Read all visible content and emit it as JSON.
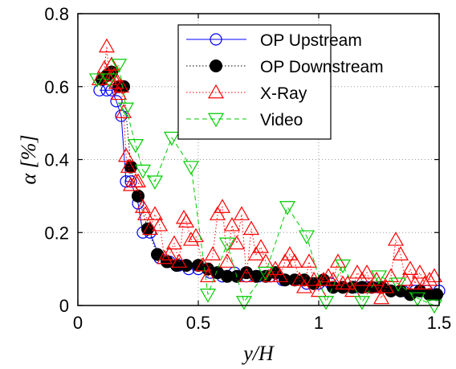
{
  "chart_data": {
    "type": "scatter",
    "xlabel": "y/H",
    "ylabel": "α [%]",
    "xlim": [
      0,
      1.5
    ],
    "ylim": [
      0,
      0.8
    ],
    "xticks": [
      "0",
      "0.5",
      "1",
      "1.5"
    ],
    "yticks": [
      "0",
      "0.2",
      "0.4",
      "0.6",
      "0.8"
    ],
    "grid": true,
    "legend_position": "top-right",
    "series": [
      {
        "name": "OP Upstream",
        "color": "#0000ff",
        "line": "solid",
        "marker": "circle-open",
        "x": [
          0.09,
          0.12,
          0.14,
          0.16,
          0.18,
          0.2,
          0.22,
          0.25,
          0.27,
          0.3,
          0.34,
          0.38,
          0.42,
          0.46,
          0.5,
          0.55,
          0.6,
          0.65,
          0.7,
          0.75,
          0.8,
          0.85,
          0.9,
          0.95,
          1.0,
          1.05,
          1.1,
          1.15,
          1.2,
          1.25,
          1.3,
          1.35,
          1.4,
          1.45,
          1.5
        ],
        "y": [
          0.59,
          0.59,
          0.59,
          0.56,
          0.52,
          0.34,
          0.34,
          0.28,
          0.2,
          0.2,
          0.13,
          0.12,
          0.11,
          0.1,
          0.1,
          0.09,
          0.08,
          0.09,
          0.08,
          0.08,
          0.08,
          0.07,
          0.07,
          0.06,
          0.06,
          0.06,
          0.05,
          0.05,
          0.05,
          0.05,
          0.04,
          0.04,
          0.04,
          0.04,
          0.04
        ]
      },
      {
        "name": "OP Downstream",
        "color": "#000000",
        "line": "dotted",
        "marker": "circle-filled",
        "x": [
          0.1,
          0.12,
          0.14,
          0.17,
          0.19,
          0.22,
          0.25,
          0.29,
          0.33,
          0.37,
          0.41,
          0.45,
          0.5,
          0.54,
          0.58,
          0.62,
          0.66,
          0.7,
          0.74,
          0.78,
          0.82,
          0.86,
          0.9,
          0.94,
          0.98,
          1.02,
          1.06,
          1.1,
          1.14,
          1.18,
          1.22,
          1.26,
          1.3,
          1.34,
          1.38,
          1.42,
          1.46,
          1.49
        ],
        "y": [
          0.62,
          0.63,
          0.64,
          0.6,
          0.6,
          0.38,
          0.3,
          0.21,
          0.14,
          0.12,
          0.11,
          0.11,
          0.11,
          0.1,
          0.09,
          0.08,
          0.08,
          0.09,
          0.08,
          0.08,
          0.09,
          0.07,
          0.07,
          0.07,
          0.06,
          0.07,
          0.05,
          0.05,
          0.05,
          0.05,
          0.05,
          0.05,
          0.04,
          0.04,
          0.03,
          0.04,
          0.03,
          0.03
        ]
      },
      {
        "name": "X-Ray",
        "color": "#ff0000",
        "line": "dotted",
        "marker": "triangle-up-open",
        "x": [
          0.09,
          0.11,
          0.12,
          0.13,
          0.14,
          0.15,
          0.16,
          0.17,
          0.18,
          0.19,
          0.2,
          0.21,
          0.22,
          0.24,
          0.25,
          0.27,
          0.28,
          0.3,
          0.32,
          0.34,
          0.36,
          0.38,
          0.4,
          0.42,
          0.44,
          0.45,
          0.47,
          0.49,
          0.52,
          0.54,
          0.56,
          0.58,
          0.6,
          0.62,
          0.64,
          0.66,
          0.68,
          0.7,
          0.72,
          0.74,
          0.76,
          0.78,
          0.8,
          0.82,
          0.84,
          0.86,
          0.88,
          0.9,
          0.92,
          0.94,
          0.96,
          0.98,
          1.0,
          1.02,
          1.04,
          1.06,
          1.08,
          1.1,
          1.12,
          1.14,
          1.16,
          1.18,
          1.2,
          1.22,
          1.24,
          1.26,
          1.28,
          1.3,
          1.32,
          1.34,
          1.36,
          1.38,
          1.4,
          1.42,
          1.44,
          1.46,
          1.48
        ],
        "y": [
          0.62,
          0.65,
          0.71,
          0.62,
          0.66,
          0.63,
          0.61,
          0.58,
          0.6,
          0.53,
          0.41,
          0.38,
          0.33,
          0.34,
          0.34,
          0.27,
          0.25,
          0.21,
          0.25,
          0.22,
          0.13,
          0.14,
          0.17,
          0.12,
          0.24,
          0.23,
          0.18,
          0.19,
          0.11,
          0.08,
          0.14,
          0.25,
          0.27,
          0.12,
          0.22,
          0.17,
          0.25,
          0.08,
          0.21,
          0.14,
          0.16,
          0.12,
          0.08,
          0.1,
          0.08,
          0.12,
          0.14,
          0.12,
          0.07,
          0.05,
          0.12,
          0.07,
          0.04,
          0.07,
          0.08,
          0.07,
          0.12,
          0.06,
          0.06,
          0.04,
          0.09,
          0.07,
          0.09,
          0.05,
          0.07,
          0.02,
          0.05,
          0.08,
          0.18,
          0.14,
          0.07,
          0.1,
          0.06,
          0.09,
          0.06,
          0.07,
          0.08
        ]
      },
      {
        "name": "Video",
        "color": "#00cc00",
        "line": "dashed",
        "marker": "triangle-down-open",
        "x": [
          0.08,
          0.13,
          0.17,
          0.2,
          0.24,
          0.27,
          0.32,
          0.39,
          0.47,
          0.54,
          0.62,
          0.69,
          0.78,
          0.87,
          0.95,
          1.03,
          1.1,
          1.18,
          1.25,
          1.33,
          1.41,
          1.48
        ],
        "y": [
          0.62,
          0.62,
          0.66,
          0.54,
          0.44,
          0.37,
          0.34,
          0.46,
          0.38,
          0.03,
          0.17,
          0.01,
          0.09,
          0.27,
          0.19,
          0.01,
          0.11,
          0.01,
          0.08,
          0.06,
          0.02,
          0.0
        ]
      }
    ]
  }
}
